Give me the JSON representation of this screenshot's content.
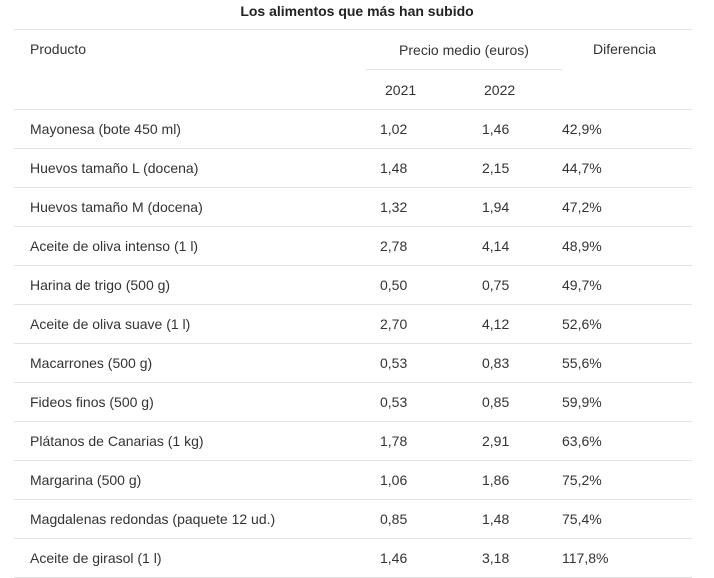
{
  "title": "Los alimentos que más han subido",
  "headers": {
    "product": "Producto",
    "price_group": "Precio medio (euros)",
    "year_2021": "2021",
    "year_2022": "2022",
    "difference": "Diferencia"
  },
  "rows": [
    {
      "product": "Mayonesa (bote 450 ml)",
      "p2021": "1,02",
      "p2022": "1,46",
      "diff": "42,9%"
    },
    {
      "product": "Huevos tamaño L (docena)",
      "p2021": "1,48",
      "p2022": "2,15",
      "diff": "44,7%"
    },
    {
      "product": "Huevos tamaño M (docena)",
      "p2021": "1,32",
      "p2022": "1,94",
      "diff": "47,2%"
    },
    {
      "product": "Aceite de oliva intenso (1 l)",
      "p2021": "2,78",
      "p2022": "4,14",
      "diff": "48,9%"
    },
    {
      "product": "Harina de trigo (500 g)",
      "p2021": "0,50",
      "p2022": "0,75",
      "diff": "49,7%"
    },
    {
      "product": "Aceite de oliva suave (1 l)",
      "p2021": "2,70",
      "p2022": "4,12",
      "diff": "52,6%"
    },
    {
      "product": "Macarrones (500 g)",
      "p2021": "0,53",
      "p2022": "0,83",
      "diff": "55,6%"
    },
    {
      "product": "Fideos finos (500 g)",
      "p2021": "0,53",
      "p2022": "0,85",
      "diff": "59,9%"
    },
    {
      "product": "Plátanos de Canarias (1 kg)",
      "p2021": "1,78",
      "p2022": "2,91",
      "diff": "63,6%"
    },
    {
      "product": "Margarina (500 g)",
      "p2021": "1,06",
      "p2022": "1,86",
      "diff": "75,2%"
    },
    {
      "product": "Magdalenas redondas (paquete 12 ud.)",
      "p2021": "0,85",
      "p2022": "1,48",
      "diff": "75,4%"
    },
    {
      "product": "Aceite de girasol (1 l)",
      "p2021": "1,46",
      "p2022": "3,18",
      "diff": "117,8%"
    }
  ]
}
